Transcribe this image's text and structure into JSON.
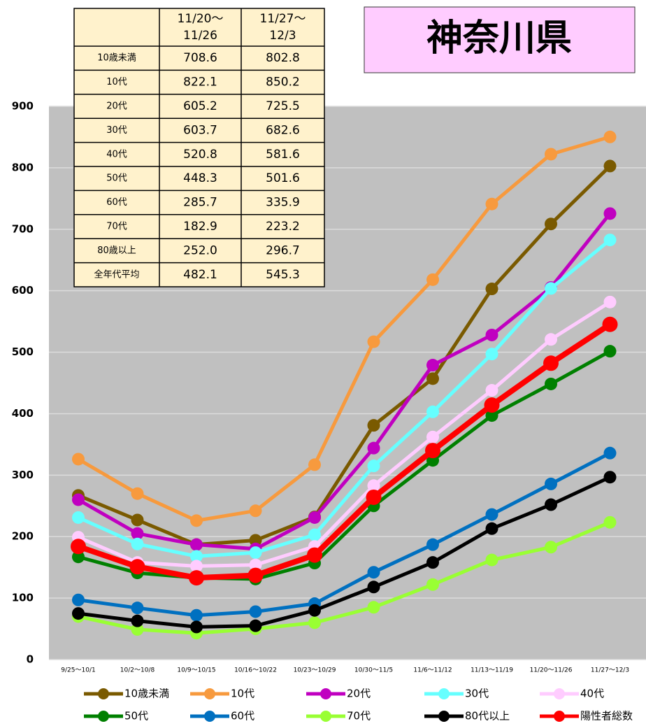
{
  "chart_data": {
    "type": "line",
    "title": "神奈川県",
    "categories": [
      "9/25～10/1",
      "10/2～10/8",
      "10/9～10/15",
      "10/16～10/22",
      "10/23～10/29",
      "10/30～11/5",
      "11/6～11/12",
      "11/13～11/19",
      "11/20～11/26",
      "11/27～12/3"
    ],
    "ylim": [
      0,
      900
    ],
    "yticks": [
      0,
      100,
      200,
      300,
      400,
      500,
      600,
      700,
      800,
      900
    ],
    "grid": true,
    "series": [
      {
        "name": "10歳未満",
        "color": "#7a5a00",
        "values": [
          267,
          227,
          187,
          194,
          232,
          381,
          457,
          603,
          708.6,
          802.8
        ]
      },
      {
        "name": "10代",
        "color": "#f79a3e",
        "values": [
          326,
          270,
          226,
          242,
          317,
          517,
          618,
          741,
          822.1,
          850.2
        ]
      },
      {
        "name": "20代",
        "color": "#c000c0",
        "values": [
          260,
          205,
          187,
          180,
          231,
          344,
          479,
          528,
          605.2,
          725.5
        ]
      },
      {
        "name": "30代",
        "color": "#66ffff",
        "values": [
          231,
          188,
          168,
          174,
          203,
          315,
          403,
          497,
          603.7,
          682.6
        ]
      },
      {
        "name": "40代",
        "color": "#ffccff",
        "values": [
          199,
          158,
          152,
          154,
          184,
          283,
          362,
          438,
          520.8,
          581.6
        ]
      },
      {
        "name": "50代",
        "color": "#008000",
        "values": [
          167,
          141,
          133,
          131,
          157,
          250,
          324,
          397,
          448.3,
          501.6
        ]
      },
      {
        "name": "60代",
        "color": "#0070c0",
        "values": [
          97,
          84,
          72,
          78,
          91,
          142,
          187,
          236,
          285.7,
          335.9
        ]
      },
      {
        "name": "70代",
        "color": "#99ff33",
        "values": [
          70,
          49,
          43,
          50,
          60,
          85,
          122,
          162,
          182.9,
          223.2
        ]
      },
      {
        "name": "80代以上",
        "color": "#000000",
        "values": [
          75,
          63,
          53,
          55,
          80,
          118,
          158,
          213,
          252.0,
          296.7
        ]
      },
      {
        "name": "陽性者総数",
        "color": "#ff0000",
        "values": [
          184,
          151,
          133,
          137,
          170,
          264,
          340,
          414,
          482.1,
          545.3
        ]
      }
    ]
  },
  "table": {
    "header": [
      [
        "11/20～",
        "11/26"
      ],
      [
        "11/27～",
        "12/3"
      ]
    ],
    "rows": [
      [
        "10歳未満",
        "708.6",
        "802.8"
      ],
      [
        "10代",
        "822.1",
        "850.2"
      ],
      [
        "20代",
        "605.2",
        "725.5"
      ],
      [
        "30代",
        "603.7",
        "682.6"
      ],
      [
        "40代",
        "520.8",
        "581.6"
      ],
      [
        "50代",
        "448.3",
        "501.6"
      ],
      [
        "60代",
        "285.7",
        "335.9"
      ],
      [
        "70代",
        "182.9",
        "223.2"
      ],
      [
        "80歳以上",
        "252.0",
        "296.7"
      ],
      [
        "全年代平均",
        "482.1",
        "545.3"
      ]
    ]
  }
}
